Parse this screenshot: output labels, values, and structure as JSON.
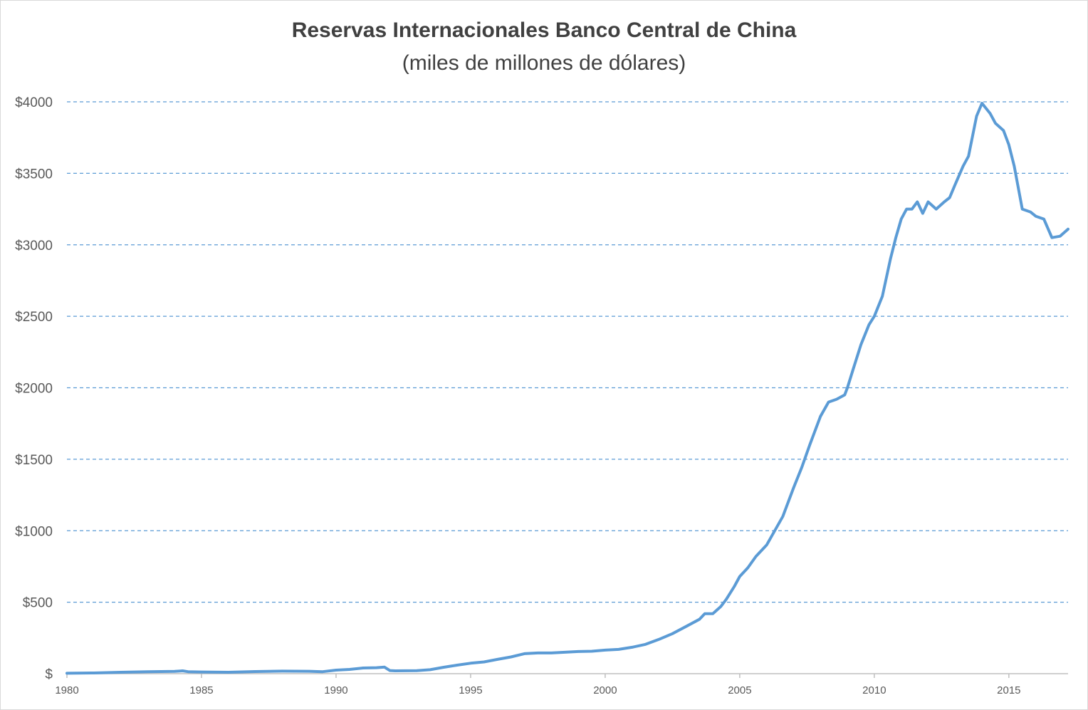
{
  "chart_data": {
    "type": "line",
    "title": "Reservas Internacionales Banco Central de China",
    "subtitle": "(miles de millones de dólares)",
    "xlabel": "",
    "ylabel": "",
    "xlim": [
      1980,
      2017.2
    ],
    "ylim": [
      0,
      4000
    ],
    "grid": "horizontal-dashed",
    "y_ticks": [
      {
        "value": 0,
        "label": "$"
      },
      {
        "value": 500,
        "label": "$500"
      },
      {
        "value": 1000,
        "label": "$1000"
      },
      {
        "value": 1500,
        "label": "$1500"
      },
      {
        "value": 2000,
        "label": "$2000"
      },
      {
        "value": 2500,
        "label": "$2500"
      },
      {
        "value": 3000,
        "label": "$3000"
      },
      {
        "value": 3500,
        "label": "$3500"
      },
      {
        "value": 4000,
        "label": "$4000"
      }
    ],
    "x_ticks": [
      {
        "value": 1980,
        "label": "1980"
      },
      {
        "value": 1985,
        "label": "1985"
      },
      {
        "value": 1990,
        "label": "1990"
      },
      {
        "value": 1995,
        "label": "1995"
      },
      {
        "value": 2000,
        "label": "2000"
      },
      {
        "value": 2005,
        "label": "2005"
      },
      {
        "value": 2010,
        "label": "2010"
      },
      {
        "value": 2015,
        "label": "2015"
      }
    ],
    "series": [
      {
        "name": "Reservas Internacionales",
        "color": "#5b9bd5",
        "x": [
          1980,
          1981,
          1982,
          1983,
          1984,
          1984.3,
          1984.5,
          1985,
          1986,
          1987,
          1988,
          1989,
          1989.5,
          1990,
          1990.5,
          1991,
          1991.5,
          1991.8,
          1992.0,
          1992.2,
          1993,
          1993.5,
          1994,
          1994.5,
          1995,
          1995.5,
          1996,
          1996.5,
          1997,
          1997.5,
          1998,
          1998.5,
          1999,
          1999.5,
          2000,
          2000.5,
          2001,
          2001.5,
          2002,
          2002.5,
          2003,
          2003.5,
          2003.7,
          2004,
          2004.3,
          2004.5,
          2004.8,
          2005,
          2005.3,
          2005.6,
          2006,
          2006.3,
          2006.6,
          2007,
          2007.3,
          2007.6,
          2008,
          2008.3,
          2008.6,
          2008.9,
          2009,
          2009.2,
          2009.5,
          2009.8,
          2010,
          2010.3,
          2010.6,
          2010.8,
          2011,
          2011.2,
          2011.4,
          2011.6,
          2011.8,
          2012,
          2012.3,
          2012.6,
          2012.8,
          2013,
          2013.3,
          2013.5,
          2013.8,
          2014,
          2014.3,
          2014.5,
          2014.8,
          2015,
          2015.2,
          2015.5,
          2015.8,
          2016,
          2016.3,
          2016.6,
          2016.9,
          2017.2
        ],
        "values": [
          3,
          5,
          10,
          14,
          16,
          20,
          14,
          12,
          10,
          15,
          18,
          17,
          14,
          25,
          30,
          40,
          42,
          46,
          22,
          20,
          21,
          28,
          45,
          60,
          73,
          82,
          100,
          117,
          140,
          145,
          145,
          150,
          155,
          157,
          165,
          170,
          185,
          205,
          240,
          280,
          330,
          380,
          420,
          420,
          470,
          520,
          610,
          680,
          740,
          820,
          900,
          1000,
          1100,
          1300,
          1440,
          1600,
          1800,
          1900,
          1920,
          1950,
          2000,
          2120,
          2300,
          2440,
          2500,
          2640,
          2900,
          3050,
          3180,
          3250,
          3250,
          3300,
          3220,
          3300,
          3250,
          3300,
          3330,
          3420,
          3550,
          3620,
          3900,
          3990,
          3920,
          3850,
          3800,
          3700,
          3550,
          3250,
          3230,
          3200,
          3180,
          3050,
          3060,
          3110
        ]
      }
    ]
  }
}
